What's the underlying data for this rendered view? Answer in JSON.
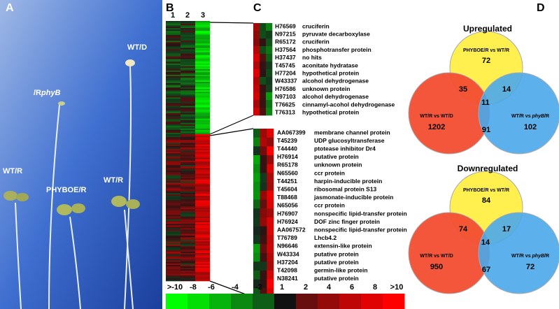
{
  "panel_a": {
    "label": "A",
    "photo_labels": [
      {
        "text": "WT/D"
      },
      {
        "italic": "phyB",
        "text": " /R"
      },
      {
        "text": "WT/R"
      },
      {
        "text": "PHYBOE/R"
      },
      {
        "text": "WT/R"
      }
    ]
  },
  "panel_b": {
    "label": "B",
    "columns": [
      "1",
      "2",
      "3"
    ]
  },
  "panel_c": {
    "label": "C",
    "upper_genes": [
      [
        "H76569",
        "cruciferin"
      ],
      [
        "N97215",
        "pyruvate decarboxylase"
      ],
      [
        "R65172",
        "cruciferin"
      ],
      [
        "H37564",
        "phosphotransfer protein"
      ],
      [
        "H37437",
        "no hits"
      ],
      [
        "T45745",
        "aconitate hydratase"
      ],
      [
        "H77204",
        "hypothetical protein"
      ],
      [
        "W43337",
        "alcohol dehydrogenase"
      ],
      [
        "H76586",
        "unknown protein"
      ],
      [
        "N97103",
        "alcohol dehydrogenase"
      ],
      [
        "T76625",
        "cinnamyl-acohol dehydrogenase"
      ],
      [
        "T76313",
        "hypothetical protein"
      ]
    ],
    "lower_genes": [
      [
        "AA067399",
        "membrane channel protein"
      ],
      [
        "T45239",
        "UDP glucosyltransferase"
      ],
      [
        "T44440",
        "ptotease inhibitor Dr4"
      ],
      [
        "H76914",
        "putative protein"
      ],
      [
        "R65178",
        "unknown protein"
      ],
      [
        "N65560",
        "ccr protein"
      ],
      [
        "T44251",
        "harpin-inducible protein"
      ],
      [
        "T45604",
        "ribosomal protein S13"
      ],
      [
        "T88468",
        "jasmonate-inducible protein"
      ],
      [
        "N65056",
        "ccr protein"
      ],
      [
        "H76907",
        "nonspecific lipid-transfer protein"
      ],
      [
        "H76924",
        "DOF zinc finger protein"
      ],
      [
        "AA067572",
        "nonspecific lipid-transfer protein"
      ],
      [
        "T76789",
        "Lhcb4.2"
      ],
      [
        "N96646",
        "extensin-like protein"
      ],
      [
        "W43334",
        "putative protein"
      ],
      [
        "H37204",
        "putative protein"
      ],
      [
        "T42098",
        "germin-like protein"
      ],
      [
        "N38241",
        "putative protein"
      ]
    ]
  },
  "color_scale": [
    ">-10",
    "-8",
    "-6",
    "-4",
    "-2",
    "1",
    "2",
    "4",
    "6",
    "8",
    ">10"
  ],
  "panel_d": {
    "label": "D",
    "venns": [
      {
        "title": "Upregulated",
        "sets": [
          {
            "text": "PHYBOE/R vs WT/R"
          },
          {
            "text": "WT/R vs WT/D"
          },
          {
            "text": "WT/R vs ",
            "italic": "phyB",
            "tail": "/R"
          }
        ],
        "counts": [
          "72",
          "35",
          "14",
          "11",
          "1202",
          "91",
          "102"
        ]
      },
      {
        "title": "Downregulated",
        "sets": [
          {
            "text": "PHYBOE/R vs WT/R"
          },
          {
            "text": "WT/R vs WT/D"
          },
          {
            "text": "WT/R vs ",
            "italic": "phyB",
            "tail": "/R"
          }
        ],
        "counts": [
          "84",
          "74",
          "17",
          "14",
          "950",
          "67",
          "72"
        ]
      }
    ]
  }
}
